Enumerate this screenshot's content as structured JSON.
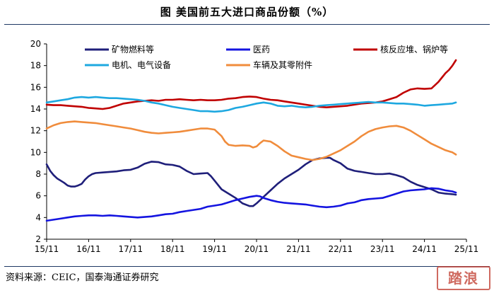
{
  "title": "图  美国前五大进口商品份额（%）",
  "source": "资料来源：CEIC，国泰海通证券研究",
  "seal_text": "踏浪",
  "chart_data": {
    "type": "line",
    "title": "图  美国前五大进口商品份额（%）",
    "xlabel": "",
    "ylabel": "",
    "ylim": [
      2,
      20
    ],
    "yticks": [
      2,
      4,
      6,
      8,
      10,
      12,
      14,
      16,
      18,
      20
    ],
    "xlim": [
      0,
      120
    ],
    "xtick_positions": [
      0,
      12,
      24,
      36,
      48,
      60,
      72,
      84,
      96,
      108,
      120
    ],
    "xtick_labels": [
      "15/11",
      "16/11",
      "17/11",
      "18/11",
      "19/11",
      "20/11",
      "21/11",
      "22/11",
      "23/11",
      "24/11",
      "25/11"
    ],
    "grid": false,
    "legend_position": "top",
    "series": [
      {
        "name": "矿物燃料等",
        "color": "#1f1f7a",
        "points": [
          [
            0,
            8.9
          ],
          [
            1,
            8.3
          ],
          [
            2,
            7.9
          ],
          [
            3,
            7.6
          ],
          [
            4,
            7.4
          ],
          [
            5,
            7.2
          ],
          [
            6,
            6.95
          ],
          [
            7,
            6.85
          ],
          [
            8,
            6.85
          ],
          [
            9,
            6.95
          ],
          [
            10,
            7.1
          ],
          [
            11,
            7.5
          ],
          [
            12,
            7.8
          ],
          [
            13,
            8.0
          ],
          [
            14,
            8.1
          ],
          [
            16,
            8.15
          ],
          [
            18,
            8.2
          ],
          [
            20,
            8.25
          ],
          [
            22,
            8.35
          ],
          [
            24,
            8.4
          ],
          [
            26,
            8.6
          ],
          [
            28,
            8.95
          ],
          [
            30,
            9.15
          ],
          [
            32,
            9.1
          ],
          [
            34,
            8.9
          ],
          [
            36,
            8.85
          ],
          [
            38,
            8.7
          ],
          [
            40,
            8.3
          ],
          [
            42,
            8.0
          ],
          [
            44,
            8.05
          ],
          [
            46,
            8.1
          ],
          [
            47,
            7.8
          ],
          [
            48,
            7.4
          ],
          [
            50,
            6.6
          ],
          [
            52,
            6.2
          ],
          [
            54,
            5.8
          ],
          [
            56,
            5.3
          ],
          [
            58,
            5.05
          ],
          [
            59,
            5.05
          ],
          [
            60,
            5.3
          ],
          [
            62,
            5.9
          ],
          [
            64,
            6.5
          ],
          [
            66,
            7.1
          ],
          [
            68,
            7.6
          ],
          [
            70,
            8.0
          ],
          [
            72,
            8.4
          ],
          [
            74,
            8.9
          ],
          [
            76,
            9.3
          ],
          [
            78,
            9.45
          ],
          [
            80,
            9.5
          ],
          [
            81,
            9.5
          ],
          [
            82,
            9.3
          ],
          [
            84,
            9.0
          ],
          [
            86,
            8.5
          ],
          [
            88,
            8.3
          ],
          [
            90,
            8.2
          ],
          [
            92,
            8.1
          ],
          [
            94,
            8.0
          ],
          [
            96,
            8.0
          ],
          [
            98,
            8.05
          ],
          [
            100,
            7.9
          ],
          [
            102,
            7.7
          ],
          [
            104,
            7.3
          ],
          [
            106,
            7.0
          ],
          [
            108,
            6.8
          ],
          [
            110,
            6.6
          ],
          [
            112,
            6.3
          ],
          [
            114,
            6.2
          ],
          [
            116,
            6.15
          ],
          [
            117,
            6.1
          ]
        ]
      },
      {
        "name": "医药",
        "color": "#1414e0",
        "points": [
          [
            0,
            3.7
          ],
          [
            2,
            3.8
          ],
          [
            4,
            3.9
          ],
          [
            6,
            4.0
          ],
          [
            8,
            4.1
          ],
          [
            10,
            4.15
          ],
          [
            12,
            4.2
          ],
          [
            14,
            4.2
          ],
          [
            16,
            4.15
          ],
          [
            18,
            4.2
          ],
          [
            20,
            4.15
          ],
          [
            22,
            4.1
          ],
          [
            24,
            4.05
          ],
          [
            26,
            4.0
          ],
          [
            28,
            4.05
          ],
          [
            30,
            4.1
          ],
          [
            32,
            4.2
          ],
          [
            34,
            4.3
          ],
          [
            36,
            4.35
          ],
          [
            38,
            4.5
          ],
          [
            40,
            4.6
          ],
          [
            42,
            4.7
          ],
          [
            44,
            4.8
          ],
          [
            46,
            5.0
          ],
          [
            48,
            5.1
          ],
          [
            50,
            5.2
          ],
          [
            52,
            5.4
          ],
          [
            54,
            5.6
          ],
          [
            56,
            5.75
          ],
          [
            58,
            5.9
          ],
          [
            60,
            6.0
          ],
          [
            61,
            5.95
          ],
          [
            62,
            5.8
          ],
          [
            64,
            5.6
          ],
          [
            66,
            5.45
          ],
          [
            68,
            5.35
          ],
          [
            70,
            5.3
          ],
          [
            72,
            5.25
          ],
          [
            74,
            5.2
          ],
          [
            76,
            5.1
          ],
          [
            78,
            5.0
          ],
          [
            80,
            4.95
          ],
          [
            82,
            5.0
          ],
          [
            84,
            5.1
          ],
          [
            86,
            5.3
          ],
          [
            88,
            5.4
          ],
          [
            90,
            5.6
          ],
          [
            92,
            5.7
          ],
          [
            94,
            5.75
          ],
          [
            96,
            5.8
          ],
          [
            98,
            6.0
          ],
          [
            100,
            6.2
          ],
          [
            102,
            6.4
          ],
          [
            104,
            6.5
          ],
          [
            106,
            6.55
          ],
          [
            108,
            6.6
          ],
          [
            110,
            6.7
          ],
          [
            112,
            6.65
          ],
          [
            114,
            6.5
          ],
          [
            116,
            6.4
          ],
          [
            117,
            6.3
          ]
        ]
      },
      {
        "name": "核反应堆、锅炉等",
        "color": "#c00000",
        "points": [
          [
            0,
            14.4
          ],
          [
            2,
            14.35
          ],
          [
            4,
            14.35
          ],
          [
            6,
            14.3
          ],
          [
            8,
            14.25
          ],
          [
            10,
            14.2
          ],
          [
            12,
            14.1
          ],
          [
            14,
            14.05
          ],
          [
            16,
            14.0
          ],
          [
            18,
            14.1
          ],
          [
            20,
            14.3
          ],
          [
            22,
            14.5
          ],
          [
            24,
            14.6
          ],
          [
            26,
            14.7
          ],
          [
            28,
            14.75
          ],
          [
            30,
            14.8
          ],
          [
            32,
            14.75
          ],
          [
            34,
            14.85
          ],
          [
            36,
            14.85
          ],
          [
            38,
            14.9
          ],
          [
            40,
            14.85
          ],
          [
            42,
            14.8
          ],
          [
            44,
            14.85
          ],
          [
            46,
            14.8
          ],
          [
            48,
            14.8
          ],
          [
            50,
            14.85
          ],
          [
            52,
            14.95
          ],
          [
            54,
            15.0
          ],
          [
            56,
            15.1
          ],
          [
            58,
            15.15
          ],
          [
            60,
            15.1
          ],
          [
            62,
            14.95
          ],
          [
            64,
            14.85
          ],
          [
            66,
            14.8
          ],
          [
            68,
            14.7
          ],
          [
            70,
            14.6
          ],
          [
            72,
            14.5
          ],
          [
            74,
            14.4
          ],
          [
            76,
            14.3
          ],
          [
            78,
            14.2
          ],
          [
            80,
            14.15
          ],
          [
            82,
            14.2
          ],
          [
            84,
            14.25
          ],
          [
            86,
            14.3
          ],
          [
            88,
            14.4
          ],
          [
            90,
            14.5
          ],
          [
            92,
            14.55
          ],
          [
            94,
            14.6
          ],
          [
            96,
            14.7
          ],
          [
            98,
            14.9
          ],
          [
            100,
            15.1
          ],
          [
            102,
            15.5
          ],
          [
            104,
            15.8
          ],
          [
            106,
            15.9
          ],
          [
            108,
            15.85
          ],
          [
            110,
            15.9
          ],
          [
            111,
            16.2
          ],
          [
            112,
            16.5
          ],
          [
            113,
            16.9
          ],
          [
            114,
            17.3
          ],
          [
            115,
            17.6
          ],
          [
            116,
            18.0
          ],
          [
            117,
            18.5
          ]
        ]
      },
      {
        "name": "电机、电气设备",
        "color": "#1ea8e0",
        "points": [
          [
            0,
            14.6
          ],
          [
            2,
            14.7
          ],
          [
            4,
            14.8
          ],
          [
            6,
            14.9
          ],
          [
            8,
            15.05
          ],
          [
            10,
            15.1
          ],
          [
            12,
            15.05
          ],
          [
            14,
            15.1
          ],
          [
            16,
            15.05
          ],
          [
            18,
            15.0
          ],
          [
            20,
            15.0
          ],
          [
            22,
            14.95
          ],
          [
            24,
            14.9
          ],
          [
            26,
            14.85
          ],
          [
            28,
            14.75
          ],
          [
            30,
            14.6
          ],
          [
            32,
            14.5
          ],
          [
            34,
            14.35
          ],
          [
            36,
            14.2
          ],
          [
            38,
            14.1
          ],
          [
            40,
            14.0
          ],
          [
            42,
            13.9
          ],
          [
            44,
            13.8
          ],
          [
            46,
            13.8
          ],
          [
            48,
            13.75
          ],
          [
            50,
            13.8
          ],
          [
            52,
            13.9
          ],
          [
            54,
            14.1
          ],
          [
            56,
            14.2
          ],
          [
            58,
            14.35
          ],
          [
            60,
            14.5
          ],
          [
            62,
            14.6
          ],
          [
            64,
            14.5
          ],
          [
            66,
            14.3
          ],
          [
            68,
            14.25
          ],
          [
            70,
            14.3
          ],
          [
            72,
            14.2
          ],
          [
            74,
            14.15
          ],
          [
            76,
            14.2
          ],
          [
            78,
            14.3
          ],
          [
            80,
            14.35
          ],
          [
            82,
            14.4
          ],
          [
            84,
            14.45
          ],
          [
            86,
            14.5
          ],
          [
            88,
            14.55
          ],
          [
            90,
            14.6
          ],
          [
            92,
            14.65
          ],
          [
            94,
            14.6
          ],
          [
            96,
            14.6
          ],
          [
            98,
            14.55
          ],
          [
            100,
            14.5
          ],
          [
            102,
            14.5
          ],
          [
            104,
            14.45
          ],
          [
            106,
            14.4
          ],
          [
            108,
            14.3
          ],
          [
            110,
            14.35
          ],
          [
            112,
            14.4
          ],
          [
            114,
            14.45
          ],
          [
            116,
            14.5
          ],
          [
            117,
            14.6
          ]
        ]
      },
      {
        "name": "车辆及其零附件",
        "color": "#f08c3c",
        "points": [
          [
            0,
            12.2
          ],
          [
            2,
            12.5
          ],
          [
            4,
            12.7
          ],
          [
            6,
            12.8
          ],
          [
            8,
            12.85
          ],
          [
            10,
            12.8
          ],
          [
            12,
            12.75
          ],
          [
            14,
            12.7
          ],
          [
            16,
            12.6
          ],
          [
            18,
            12.5
          ],
          [
            20,
            12.4
          ],
          [
            22,
            12.3
          ],
          [
            24,
            12.2
          ],
          [
            26,
            12.05
          ],
          [
            28,
            11.9
          ],
          [
            30,
            11.8
          ],
          [
            32,
            11.75
          ],
          [
            34,
            11.8
          ],
          [
            36,
            11.85
          ],
          [
            38,
            11.9
          ],
          [
            40,
            12.0
          ],
          [
            42,
            12.1
          ],
          [
            44,
            12.2
          ],
          [
            46,
            12.2
          ],
          [
            48,
            12.1
          ],
          [
            50,
            11.5
          ],
          [
            51,
            11.0
          ],
          [
            52,
            10.7
          ],
          [
            54,
            10.6
          ],
          [
            56,
            10.65
          ],
          [
            58,
            10.6
          ],
          [
            59,
            10.45
          ],
          [
            60,
            10.55
          ],
          [
            61,
            10.85
          ],
          [
            62,
            11.1
          ],
          [
            64,
            11.0
          ],
          [
            66,
            10.6
          ],
          [
            68,
            10.1
          ],
          [
            70,
            9.7
          ],
          [
            72,
            9.55
          ],
          [
            74,
            9.4
          ],
          [
            76,
            9.3
          ],
          [
            78,
            9.4
          ],
          [
            80,
            9.6
          ],
          [
            82,
            9.9
          ],
          [
            84,
            10.2
          ],
          [
            86,
            10.6
          ],
          [
            88,
            11.0
          ],
          [
            90,
            11.5
          ],
          [
            92,
            11.9
          ],
          [
            94,
            12.15
          ],
          [
            96,
            12.3
          ],
          [
            98,
            12.4
          ],
          [
            100,
            12.45
          ],
          [
            102,
            12.3
          ],
          [
            104,
            12.0
          ],
          [
            106,
            11.6
          ],
          [
            108,
            11.2
          ],
          [
            110,
            10.8
          ],
          [
            112,
            10.5
          ],
          [
            114,
            10.2
          ],
          [
            116,
            10.0
          ],
          [
            117,
            9.8
          ]
        ]
      }
    ]
  }
}
